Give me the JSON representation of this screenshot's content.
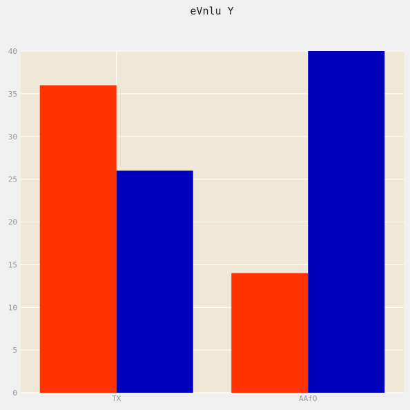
{
  "chart_data": {
    "type": "bar",
    "title": "eVnlu Y",
    "categories": [
      "TX",
      "AAfO"
    ],
    "series": [
      {
        "values": [
          36,
          14
        ],
        "color": "#ff3300"
      },
      {
        "values": [
          26,
          40
        ],
        "color": "#0000bb"
      }
    ],
    "ylim": [
      0,
      40
    ],
    "yticks": [
      0,
      5,
      10,
      15,
      20,
      25,
      30,
      35,
      40
    ],
    "grid": true,
    "plot_background": "#efe8d6",
    "grid_color": "#ffffff",
    "xlabel": "",
    "ylabel": ""
  }
}
